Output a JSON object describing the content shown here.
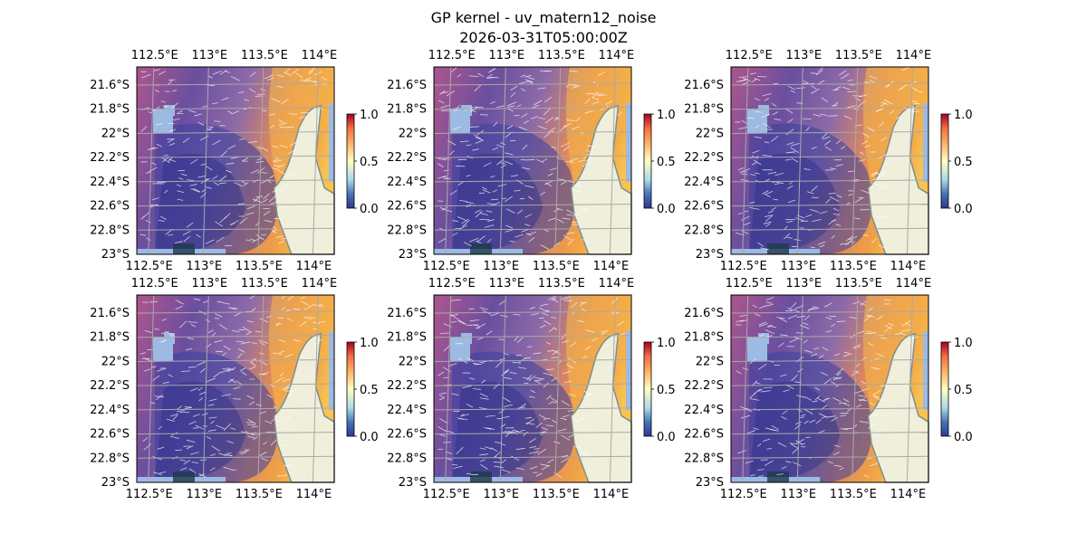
{
  "figure": {
    "title": "GP kernel - uv_matern12_noise",
    "subtitle": "2026-03-31T05:00:00Z"
  },
  "chart_data": {
    "type": "heatmap",
    "layout": {
      "rows": 2,
      "cols": 3
    },
    "panels_count": 6,
    "extent": {
      "lon": [
        112.37,
        114.17
      ],
      "lat": [
        -23.0,
        -21.45
      ]
    },
    "x_ticks": [
      112.5,
      113.0,
      113.5,
      114.0
    ],
    "x_tick_labels": [
      "112.5°E",
      "113°E",
      "113.5°E",
      "114°E"
    ],
    "y_ticks": [
      -21.6,
      -21.8,
      -22.0,
      -22.2,
      -22.4,
      -22.6,
      -22.8,
      -23.0
    ],
    "y_tick_labels": [
      "21.6°S",
      "21.8°S",
      "22°S",
      "22.2°S",
      "22.4°S",
      "22.6°S",
      "22.8°S",
      "23°S"
    ],
    "colorbar": {
      "range": [
        0.0,
        1.0
      ],
      "ticks": [
        0.0,
        0.5,
        1.0
      ],
      "tick_labels": [
        "0.0",
        "0.5",
        "1.0"
      ],
      "colormap": "RdYlBu_r"
    },
    "colors": {
      "land": "#efefdb",
      "ocean": "#9dbae3",
      "coast": "#7f8c8d",
      "grid": "#a9a9a9",
      "low": "#3b3f9e",
      "mid": "#8d6aa8",
      "high": "#f0a247",
      "vectors": "#ffffff"
    },
    "grid": true,
    "overlay": "white velocity vectors"
  }
}
